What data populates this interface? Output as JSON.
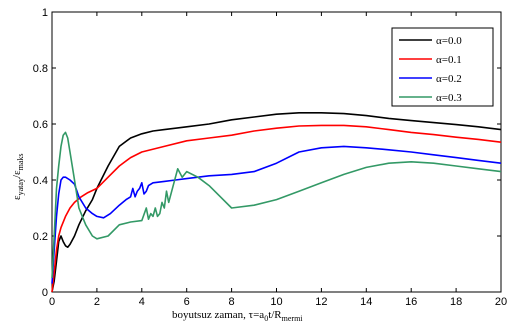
{
  "chart_data": {
    "type": "line",
    "xlabel": "boyutsuz zaman, τ=a",
    "xlabel_sub1": "0",
    "xlabel_mid": "t/R",
    "xlabel_sub2": "mermi",
    "ylabel": "ε",
    "ylabel_sub1": "yatay",
    "ylabel_mid": "/ε",
    "ylabel_sub2": "maks",
    "xlim": [
      0,
      20
    ],
    "ylim": [
      0,
      1
    ],
    "xticks": [
      "0",
      "2",
      "4",
      "6",
      "8",
      "10",
      "12",
      "14",
      "16",
      "18",
      "20"
    ],
    "yticks": [
      "0",
      "0.2",
      "0.4",
      "0.6",
      "0.8",
      "1"
    ],
    "legend_position": "top-right",
    "series": [
      {
        "name": "α=0.0",
        "color": "#000000",
        "x": [
          0,
          0.1,
          0.2,
          0.3,
          0.4,
          0.5,
          0.6,
          0.7,
          0.8,
          1.0,
          1.2,
          1.5,
          1.8,
          2.0,
          2.5,
          3.0,
          3.5,
          4.0,
          4.5,
          5.0,
          6.0,
          7.0,
          8.0,
          9.0,
          10.0,
          11.0,
          12.0,
          13.0,
          14.0,
          15.0,
          16.0,
          17.0,
          18.0,
          19.0,
          20.0
        ],
        "y": [
          0.0,
          0.04,
          0.11,
          0.18,
          0.2,
          0.18,
          0.165,
          0.16,
          0.17,
          0.2,
          0.24,
          0.29,
          0.33,
          0.37,
          0.45,
          0.52,
          0.55,
          0.565,
          0.575,
          0.58,
          0.59,
          0.6,
          0.615,
          0.625,
          0.635,
          0.64,
          0.64,
          0.637,
          0.63,
          0.62,
          0.612,
          0.605,
          0.598,
          0.59,
          0.58
        ]
      },
      {
        "name": "α=0.1",
        "color": "#ff0000",
        "x": [
          0,
          0.1,
          0.2,
          0.3,
          0.4,
          0.6,
          0.8,
          1.0,
          1.3,
          1.6,
          2.0,
          2.5,
          3.0,
          3.5,
          4.0,
          5.0,
          6.0,
          7.0,
          8.0,
          9.0,
          10.0,
          11.0,
          12.0,
          13.0,
          14.0,
          15.0,
          16.0,
          17.0,
          18.0,
          19.0,
          20.0
        ],
        "y": [
          0.0,
          0.07,
          0.15,
          0.2,
          0.23,
          0.27,
          0.3,
          0.32,
          0.34,
          0.355,
          0.37,
          0.41,
          0.45,
          0.48,
          0.5,
          0.52,
          0.54,
          0.55,
          0.56,
          0.575,
          0.585,
          0.593,
          0.595,
          0.595,
          0.59,
          0.58,
          0.57,
          0.562,
          0.553,
          0.545,
          0.535
        ]
      },
      {
        "name": "α=0.2",
        "color": "#0000ff",
        "x": [
          0,
          0.1,
          0.2,
          0.3,
          0.4,
          0.5,
          0.6,
          0.8,
          1.0,
          1.2,
          1.5,
          1.8,
          2.0,
          2.3,
          2.6,
          3.0,
          3.3,
          3.5,
          3.6,
          3.7,
          3.8,
          3.9,
          4.0,
          4.1,
          4.2,
          4.3,
          4.5,
          5.0,
          5.5,
          6.0,
          6.5,
          7.0,
          8.0,
          9.0,
          10.0,
          11.0,
          12.0,
          13.0,
          14.0,
          15.0,
          16.0,
          17.0,
          18.0,
          19.0,
          20.0
        ],
        "y": [
          0.03,
          0.15,
          0.27,
          0.35,
          0.4,
          0.41,
          0.41,
          0.4,
          0.385,
          0.34,
          0.3,
          0.28,
          0.27,
          0.265,
          0.28,
          0.31,
          0.33,
          0.34,
          0.37,
          0.34,
          0.36,
          0.37,
          0.39,
          0.35,
          0.36,
          0.38,
          0.39,
          0.395,
          0.4,
          0.405,
          0.41,
          0.415,
          0.42,
          0.43,
          0.46,
          0.5,
          0.515,
          0.52,
          0.515,
          0.508,
          0.5,
          0.49,
          0.48,
          0.47,
          0.46
        ]
      },
      {
        "name": "α=0.3",
        "color": "#339966",
        "x": [
          0,
          0.1,
          0.2,
          0.3,
          0.4,
          0.5,
          0.6,
          0.7,
          0.8,
          1.0,
          1.2,
          1.5,
          1.8,
          2.0,
          2.5,
          3.0,
          3.5,
          4.0,
          4.2,
          4.3,
          4.4,
          4.5,
          4.6,
          4.7,
          4.8,
          4.9,
          5.0,
          5.1,
          5.2,
          5.4,
          5.6,
          5.8,
          6.0,
          6.5,
          7.0,
          7.5,
          8.0,
          9.0,
          10.0,
          11.0,
          12.0,
          13.0,
          14.0,
          15.0,
          16.0,
          17.0,
          18.0,
          19.0,
          20.0
        ],
        "y": [
          0.05,
          0.2,
          0.37,
          0.45,
          0.52,
          0.56,
          0.57,
          0.55,
          0.5,
          0.4,
          0.3,
          0.24,
          0.2,
          0.19,
          0.2,
          0.24,
          0.25,
          0.255,
          0.3,
          0.26,
          0.28,
          0.27,
          0.3,
          0.27,
          0.28,
          0.32,
          0.3,
          0.36,
          0.32,
          0.38,
          0.44,
          0.41,
          0.43,
          0.41,
          0.38,
          0.34,
          0.3,
          0.31,
          0.33,
          0.36,
          0.39,
          0.42,
          0.445,
          0.46,
          0.465,
          0.46,
          0.45,
          0.44,
          0.43
        ]
      }
    ]
  }
}
